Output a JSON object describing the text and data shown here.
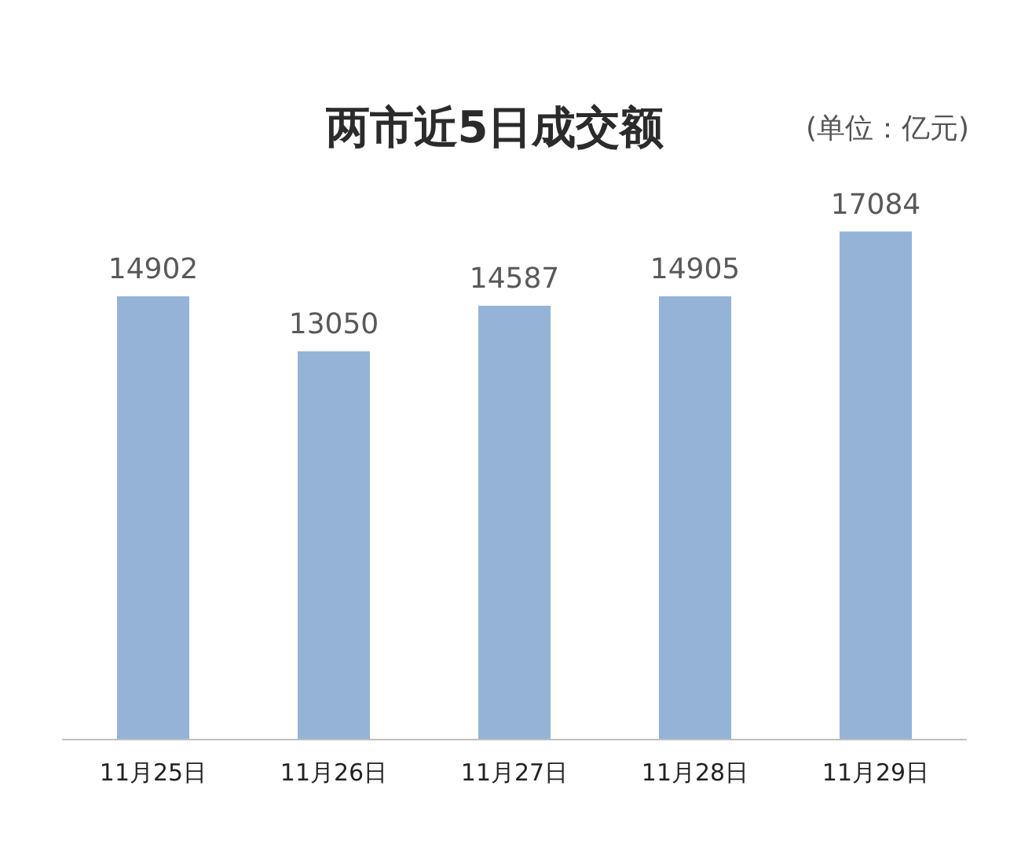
{
  "chart_data": {
    "type": "bar",
    "title": "两市近5日成交额",
    "subtitle": "(单位：亿元)",
    "categories": [
      "11月25日",
      "11月26日",
      "11月27日",
      "11月28日",
      "11月29日"
    ],
    "values": [
      14902,
      13050,
      14587,
      14905,
      17084
    ],
    "color": "#95b3d7",
    "data_labels": true
  }
}
